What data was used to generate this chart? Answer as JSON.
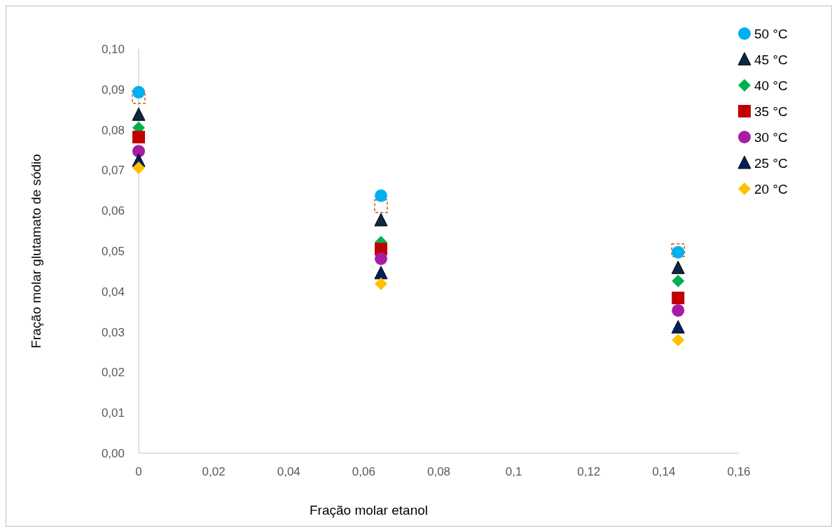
{
  "chart_data": {
    "type": "scatter",
    "xlabel": "Fração molar etanol",
    "ylabel": "Fração molar glutamato de sódio",
    "x": [
      0,
      0.0646,
      0.1438
    ],
    "xlim": [
      0,
      0.16
    ],
    "xticks": [
      0,
      {
        "value": 0.02,
        "label": "0,02"
      },
      {
        "value": 0.04,
        "label": "0,04"
      },
      {
        "value": 0.06,
        "label": "0,06"
      },
      {
        "value": 0.08,
        "label": "0,08"
      },
      {
        "value": 0.1,
        "label": "0,1"
      },
      {
        "value": 0.12,
        "label": "0,12"
      },
      {
        "value": 0.14,
        "label": "0,14"
      },
      {
        "value": 0.16,
        "label": "0,16"
      }
    ],
    "ylim": [
      0,
      0.1
    ],
    "yticks": [
      {
        "value": 0,
        "label": "0,00"
      },
      {
        "value": 0.01,
        "label": "0,01"
      },
      {
        "value": 0.02,
        "label": "0,02"
      },
      {
        "value": 0.03,
        "label": "0,03"
      },
      {
        "value": 0.04,
        "label": "0,04"
      },
      {
        "value": 0.05,
        "label": "0,05"
      },
      {
        "value": 0.06,
        "label": "0,06"
      },
      {
        "value": 0.07,
        "label": "0,07"
      },
      {
        "value": 0.08,
        "label": "0,08"
      },
      {
        "value": 0.09,
        "label": "0,09"
      },
      {
        "value": 0.1,
        "label": "0,10"
      }
    ],
    "grid": false,
    "legend": "top right",
    "series": [
      {
        "color": "#c55a11",
        "marker": "square",
        "line_style": "dashed",
        "values": [
          0.0881,
          0.0611,
          0.0502
        ]
      },
      {
        "name": "50 °C",
        "color": "#00b0f0",
        "marker": "circle",
        "values": [
          0.0893,
          0.0637,
          0.0497
        ]
      },
      {
        "name": "45 °C",
        "color": "#0d2840",
        "marker": "triangle",
        "values": [
          0.0837,
          0.0576,
          0.0458
        ]
      },
      {
        "name": "40 °C",
        "color": "#00b050",
        "marker": "diamond",
        "values": [
          0.0805,
          0.0522,
          0.0426
        ]
      },
      {
        "name": "35 °C",
        "color": "#c00000",
        "marker": "square",
        "values": [
          0.0782,
          0.0505,
          0.0384
        ]
      },
      {
        "name": "30 °C",
        "color": "#a71ba7",
        "marker": "circle",
        "values": [
          0.0747,
          0.0481,
          0.0353
        ]
      },
      {
        "name": "25 °C",
        "color": "#002060",
        "marker": "triangle",
        "values": [
          0.0723,
          0.0445,
          0.0311
        ]
      },
      {
        "name": "20 °C",
        "color": "#ffc000",
        "marker": "diamond",
        "values": [
          0.0706,
          0.0419,
          0.028
        ]
      }
    ]
  }
}
